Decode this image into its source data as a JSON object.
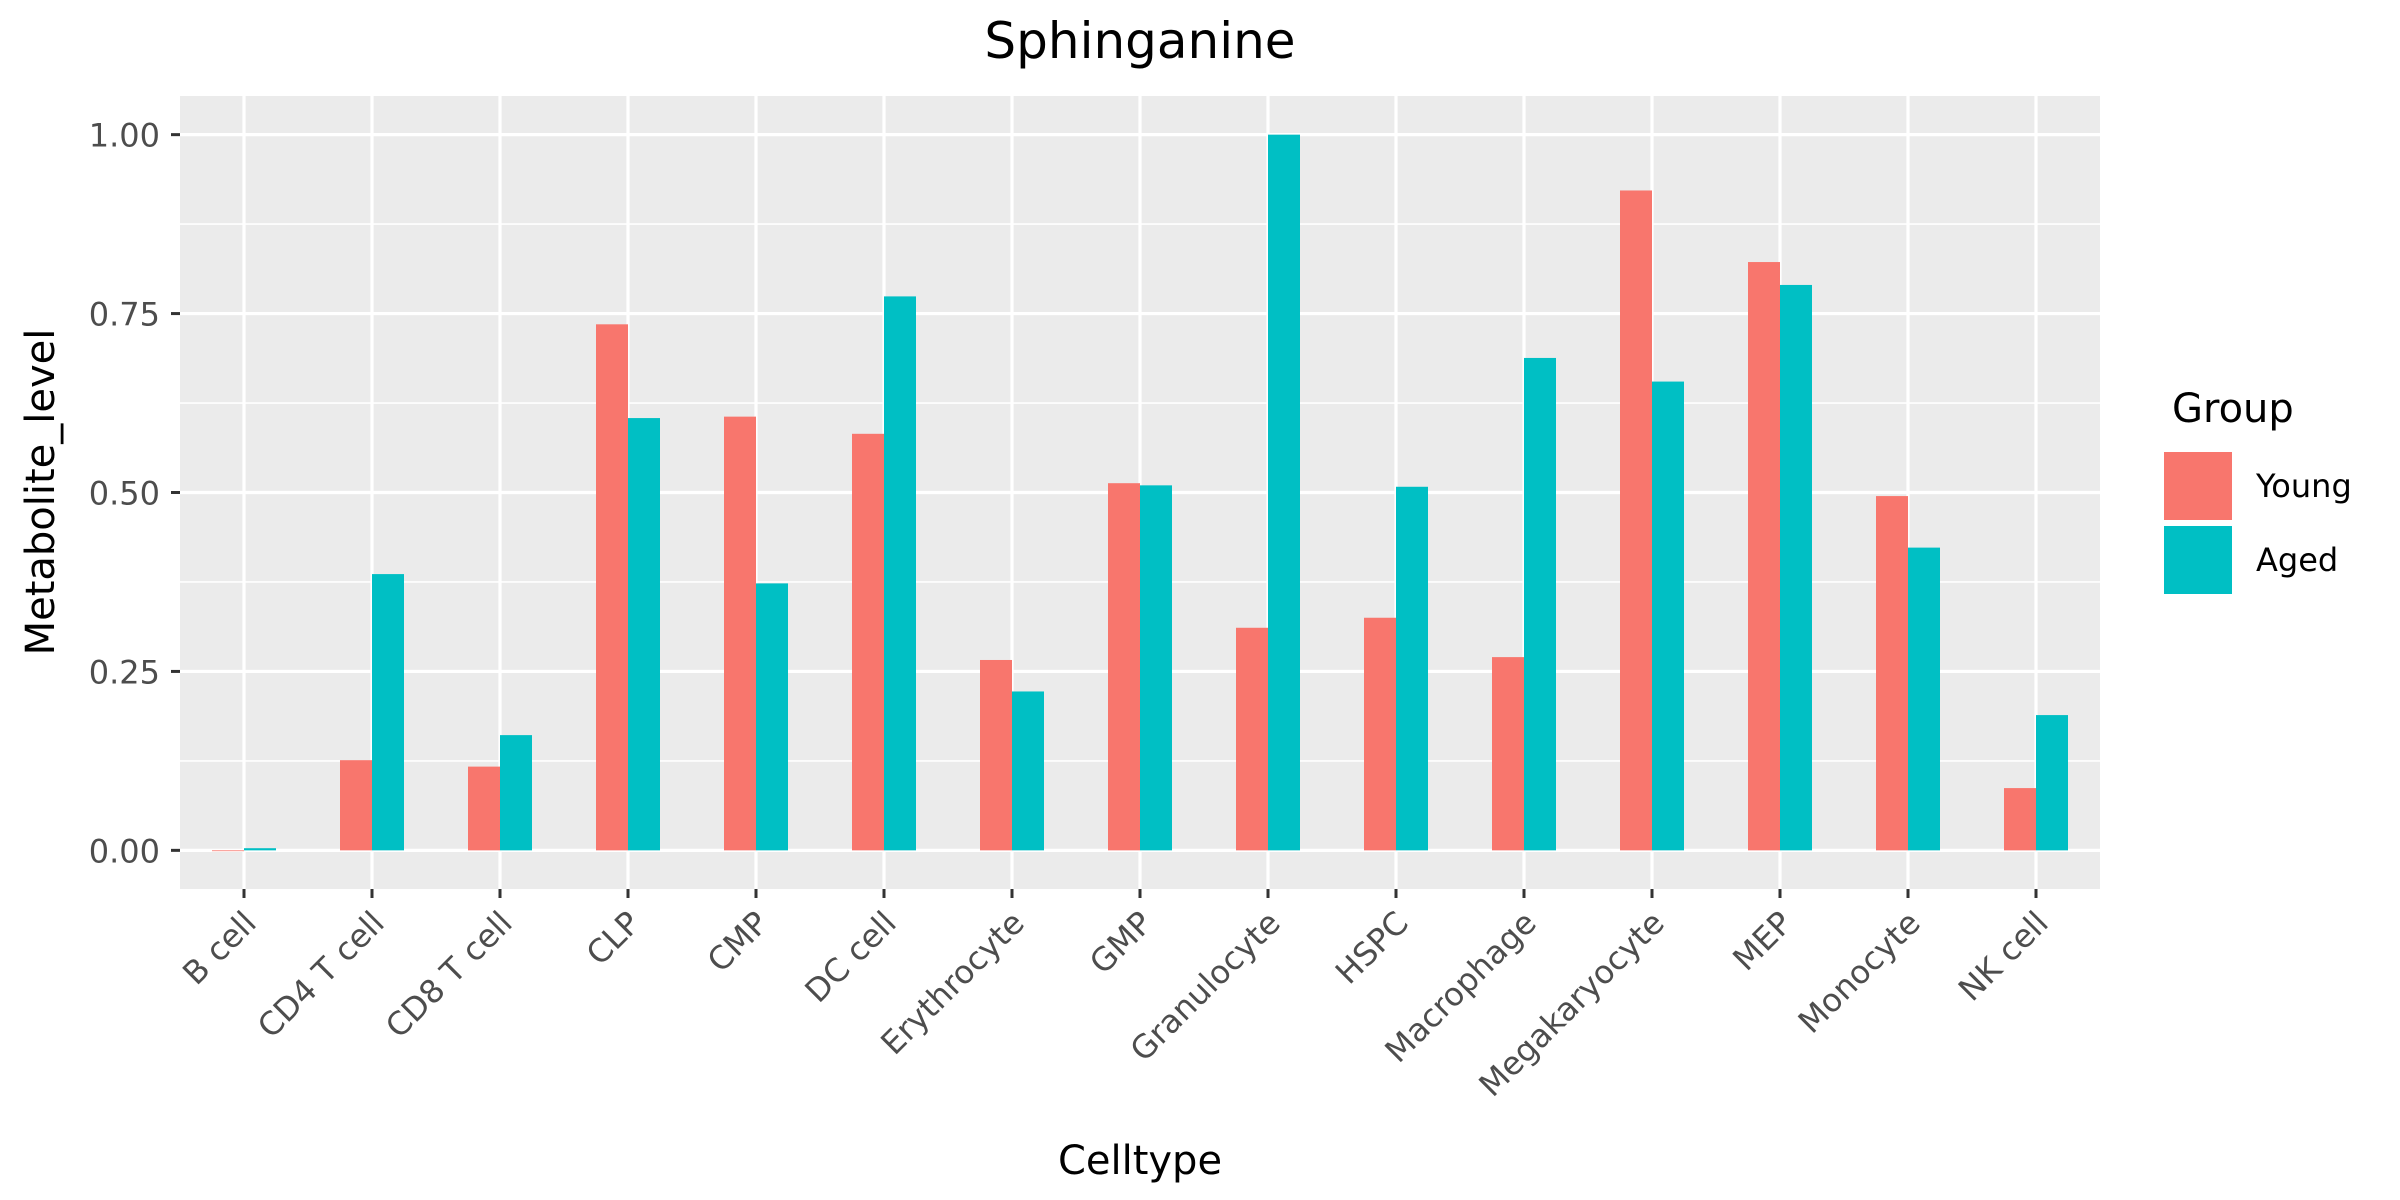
{
  "chart_data": {
    "type": "bar",
    "title": "Sphinganine",
    "xlabel": "Celltype",
    "ylabel": "Metabolite_level",
    "categories": [
      "B cell",
      "CD4 T cell",
      "CD8 T cell",
      "CLP",
      "CMP",
      "DC cell",
      "Erythrocyte",
      "GMP",
      "Granulocyte",
      "HSPC",
      "Macrophage",
      "Megakaryocyte",
      "MEP",
      "Monocyte",
      "NK cell"
    ],
    "series": [
      {
        "name": "Young",
        "color": "#F8766D",
        "values": [
          0.0,
          0.126,
          0.117,
          0.735,
          0.606,
          0.582,
          0.266,
          0.513,
          0.311,
          0.325,
          0.27,
          0.922,
          0.822,
          0.495,
          0.087
        ]
      },
      {
        "name": "Aged",
        "color": "#00BFC4",
        "values": [
          0.003,
          0.386,
          0.161,
          0.604,
          0.373,
          0.774,
          0.222,
          0.51,
          1.0,
          0.508,
          0.688,
          0.655,
          0.79,
          0.423,
          0.189
        ]
      }
    ],
    "yticks": [
      0.0,
      0.25,
      0.5,
      0.75,
      1.0
    ],
    "ytick_labels": [
      "0.00",
      "0.25",
      "0.50",
      "0.75",
      "1.00"
    ],
    "ylim": [
      -0.054,
      1.054
    ],
    "grid": true,
    "background": "#EBEBEB",
    "legend": {
      "title": "Group",
      "position": "right"
    }
  }
}
